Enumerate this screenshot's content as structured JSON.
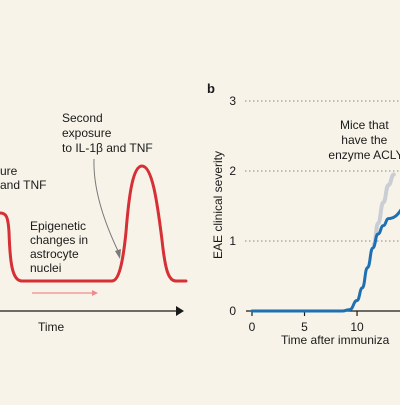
{
  "chart_data": [
    {
      "type": "line",
      "panel_label": "",
      "annotations": [
        {
          "lines": [
            "ure",
            "and TNF"
          ]
        },
        {
          "lines": [
            "Second",
            "exposure",
            "to IL-1β and TNF"
          ]
        },
        {
          "lines": [
            "Epigenetic",
            "changes in",
            "astrocyte",
            "nuclei"
          ]
        }
      ],
      "xlabel": "Time",
      "series": [
        {
          "color": "#d62f35"
        }
      ],
      "arrow_color": "#f08a8f"
    },
    {
      "type": "line",
      "panel_label": "b",
      "ylabel": "EAE clinical severity",
      "xlabel": "Time after immuniza",
      "x_ticks": [
        0,
        5,
        10
      ],
      "y_ticks": [
        0,
        1,
        2,
        3
      ],
      "xlim": [
        0,
        15.5
      ],
      "ylim": [
        0,
        3
      ],
      "grid": "dotted horizontal",
      "annotations": [
        {
          "lines": [
            "Mice that",
            "have the",
            "enzyme ACLY"
          ]
        }
      ],
      "series": [
        {
          "color": "#1f6fb3",
          "x": [
            0,
            8.6,
            9.3,
            10,
            10.5,
            11,
            11.5,
            12,
            12.5,
            13,
            15.5
          ],
          "y": [
            0,
            0,
            0.02,
            0.15,
            0.33,
            0.62,
            0.9,
            1.1,
            1.22,
            1.32,
            1.6
          ]
        },
        {
          "color": "#c9ced4",
          "x": [
            11.6,
            12,
            12.5,
            13,
            13.5
          ],
          "y": [
            0.95,
            1.25,
            1.55,
            1.8,
            1.95
          ]
        }
      ]
    }
  ]
}
